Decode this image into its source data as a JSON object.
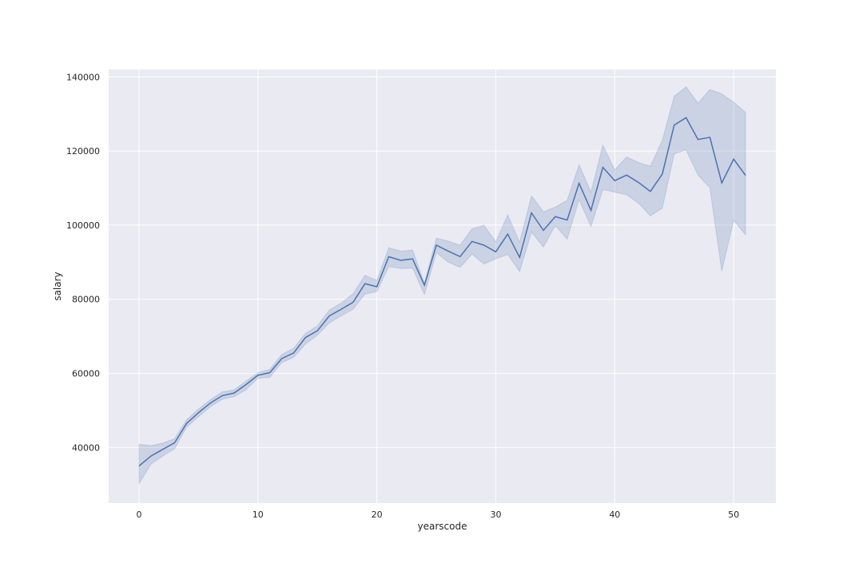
{
  "chart_data": {
    "type": "line",
    "title": "",
    "xlabel": "yearscode",
    "ylabel": "salary",
    "xlim": [
      -2.55,
      53.55
    ],
    "ylim": [
      25000,
      142000
    ],
    "xticks": [
      0,
      10,
      20,
      30,
      40,
      50
    ],
    "yticks": [
      40000,
      60000,
      80000,
      100000,
      120000,
      140000
    ],
    "grid": true,
    "legend": "none",
    "colors": {
      "background": "#eaeaf2",
      "grid": "#ffffff",
      "line": "#4c72b0",
      "band": "#4c72b0"
    },
    "series": [
      {
        "x": [
          0,
          1,
          2,
          3,
          4,
          5,
          6,
          7,
          8,
          9,
          10,
          11,
          12,
          13,
          14,
          15,
          16,
          17,
          18,
          19,
          20,
          21,
          22,
          23,
          24,
          25,
          26,
          27,
          28,
          29,
          30,
          31,
          32,
          33,
          34,
          35,
          36,
          37,
          38,
          39,
          40,
          41,
          42,
          43,
          44,
          45,
          46,
          47,
          48,
          49,
          50,
          51
        ],
        "y": [
          35000,
          37700,
          39500,
          41300,
          46500,
          49400,
          52000,
          54000,
          54700,
          57000,
          59500,
          60200,
          64000,
          65500,
          69700,
          71500,
          75500,
          77300,
          79200,
          84200,
          83400,
          91500,
          90500,
          90900,
          83800,
          94600,
          93000,
          91500,
          95600,
          94600,
          92800,
          97600,
          91300,
          103300,
          98600,
          102300,
          101400,
          111300,
          104000,
          115600,
          112000,
          113500,
          111500,
          109100,
          113800,
          127000,
          129000,
          123100,
          123700,
          111400,
          117800,
          113400
        ],
        "ci_lower": [
          30200,
          35500,
          37700,
          39700,
          45500,
          48300,
          51000,
          53000,
          53700,
          55600,
          58700,
          58900,
          62900,
          64300,
          67900,
          70300,
          73600,
          75500,
          77300,
          81400,
          82100,
          88800,
          88300,
          88400,
          81300,
          92600,
          90000,
          88600,
          92200,
          89500,
          90900,
          92100,
          87500,
          98100,
          94100,
          99900,
          96200,
          106900,
          99600,
          109600,
          108900,
          108200,
          105900,
          102500,
          104600,
          119200,
          120300,
          113500,
          110100,
          87600,
          101300,
          97400
        ],
        "ci_upper": [
          40900,
          40500,
          41200,
          42400,
          47500,
          50400,
          52900,
          55000,
          55600,
          57900,
          60200,
          61100,
          65100,
          66800,
          70800,
          72800,
          77100,
          79000,
          81500,
          86500,
          85100,
          93900,
          93000,
          93300,
          84300,
          96500,
          95700,
          94600,
          99000,
          100000,
          95500,
          102800,
          95400,
          107900,
          103600,
          104900,
          106700,
          116300,
          108900,
          121600,
          114900,
          118400,
          116900,
          115900,
          122900,
          134800,
          137300,
          132900,
          136600,
          135400,
          133200,
          130400
        ]
      }
    ]
  }
}
